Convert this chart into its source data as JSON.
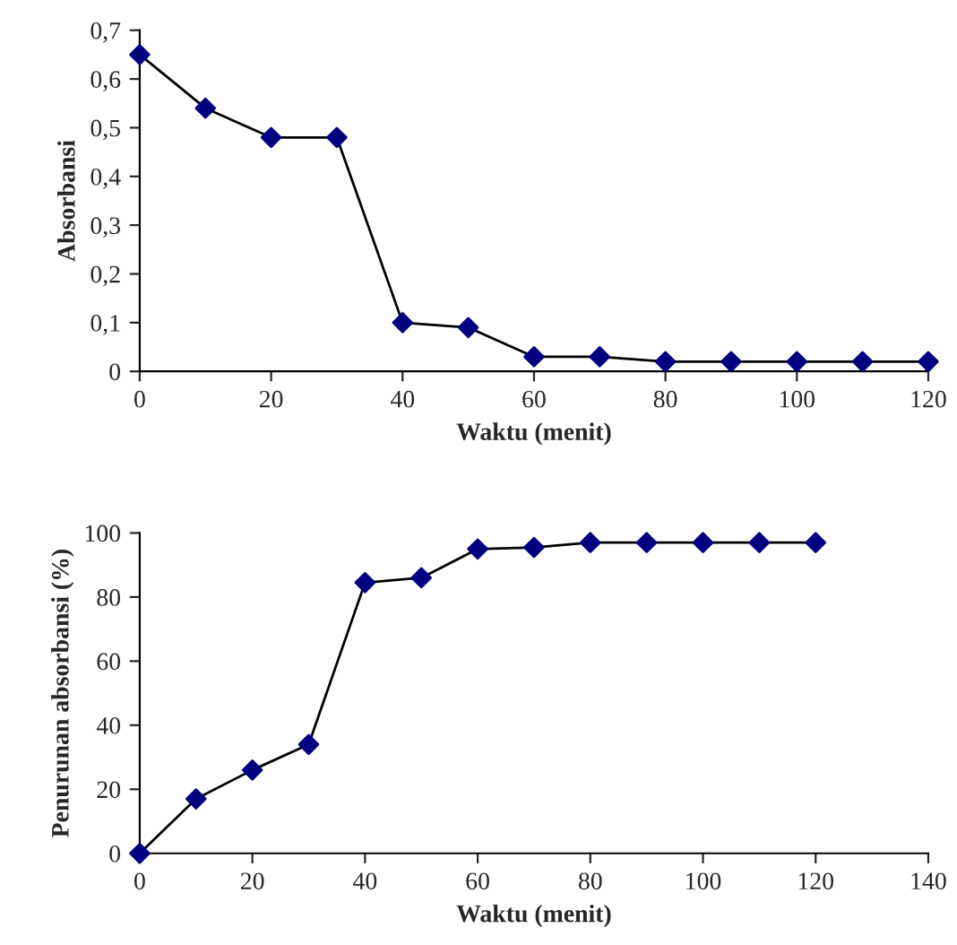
{
  "chart_data": [
    {
      "type": "line",
      "xlabel": "Waktu (menit)",
      "ylabel": "Absorbansi",
      "marker": "diamond",
      "line_style": "solid",
      "grid": false,
      "legend": false,
      "series": [
        {
          "color": "#000080",
          "x": [
            0,
            10,
            20,
            30,
            40,
            50,
            60,
            70,
            80,
            90,
            100,
            110,
            120
          ],
          "values": [
            0.65,
            0.54,
            0.48,
            0.48,
            0.1,
            0.09,
            0.03,
            0.03,
            0.02,
            0.02,
            0.02,
            0.02,
            0.02
          ]
        }
      ],
      "xlim": [
        0,
        120
      ],
      "xticks": [
        0,
        20,
        40,
        60,
        80,
        100,
        120
      ],
      "ylim": [
        0,
        0.7
      ],
      "yticks": [
        0,
        {
          "value": 0.1,
          "label": "0,1"
        },
        {
          "value": 0.2,
          "label": "0,2"
        },
        {
          "value": 0.3,
          "label": "0,3"
        },
        {
          "value": 0.4,
          "label": "0,4"
        },
        {
          "value": 0.5,
          "label": "0,5"
        },
        {
          "value": 0.6,
          "label": "0,6"
        },
        {
          "value": 0.7,
          "label": "0,7"
        }
      ]
    },
    {
      "type": "line",
      "xlabel": "Waktu (menit)",
      "ylabel": "Penurunan absorbansi (%)",
      "marker": "diamond",
      "line_style": "solid",
      "grid": false,
      "legend": false,
      "series": [
        {
          "color": "#000080",
          "x": [
            0,
            10,
            20,
            30,
            40,
            50,
            60,
            70,
            80,
            90,
            100,
            110,
            120
          ],
          "values": [
            0,
            17,
            26,
            34,
            84.5,
            86,
            95,
            95.5,
            97,
            97,
            97,
            97,
            97
          ]
        }
      ],
      "xlim": [
        0,
        140
      ],
      "xticks": [
        0,
        20,
        40,
        60,
        80,
        100,
        120,
        140
      ],
      "ylim": [
        0,
        100
      ],
      "yticks": [
        0,
        20,
        40,
        60,
        80,
        100
      ]
    }
  ]
}
